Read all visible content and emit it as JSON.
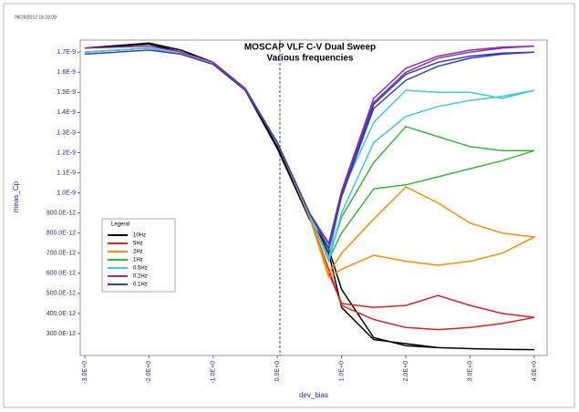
{
  "timestamp": "06/26/2012 16:23:09",
  "chart_data": {
    "type": "line",
    "title": "MOSCAP VLF C-V Dual Sweep",
    "subtitle": "Various frequencies",
    "x_label": "dev_bias",
    "y_label": "meas_Cp",
    "legend_title": "Legend",
    "legend_position": "lower left",
    "xlim": [
      -3.07,
      4.2
    ],
    "ylim": [
      1.91e-10,
      1.76e-09
    ],
    "xticks": [
      {
        "value": -3,
        "label": "-3.0E+0"
      },
      {
        "value": -2,
        "label": "-2.0E+0"
      },
      {
        "value": -1,
        "label": "-1.0E+0"
      },
      {
        "value": 0,
        "label": "0.0E+0"
      },
      {
        "value": 1,
        "label": "1.0E+0"
      },
      {
        "value": 2,
        "label": "2.0E+0"
      },
      {
        "value": 3,
        "label": "3.0E+0"
      },
      {
        "value": 4,
        "label": "4.0E+0"
      }
    ],
    "yticks": [
      {
        "value": 1.7e-09,
        "label": "1.7E-9"
      },
      {
        "value": 1.6e-09,
        "label": "1.6E-9"
      },
      {
        "value": 1.5e-09,
        "label": "1.5E-9"
      },
      {
        "value": 1.4e-09,
        "label": "1.4E-9"
      },
      {
        "value": 1.3e-09,
        "label": "1.3E-9"
      },
      {
        "value": 1.2e-09,
        "label": "1.2E-9"
      },
      {
        "value": 1.1e-09,
        "label": "1.1E-9"
      },
      {
        "value": 1e-09,
        "label": "1.0E-9"
      },
      {
        "value": 9e-10,
        "label": "900.0E-12"
      },
      {
        "value": 8e-10,
        "label": "800.0E-12"
      },
      {
        "value": 7e-10,
        "label": "700.0E-12"
      },
      {
        "value": 6e-10,
        "label": "600.0E-12"
      },
      {
        "value": 5e-10,
        "label": "500.0E-12"
      },
      {
        "value": 4e-10,
        "label": "400.0E-12"
      },
      {
        "value": 3e-10,
        "label": "300.0E-12"
      }
    ],
    "x": [
      -3,
      -2,
      -1.5,
      -1,
      -0.5,
      0,
      0.5,
      0.8,
      1,
      1.5,
      2,
      2.5,
      3,
      3.5,
      4,
      3.5,
      3,
      2.5,
      2,
      1.5,
      1,
      0.8,
      0.5,
      0,
      -0.5,
      -1,
      -1.5,
      -2,
      -3
    ],
    "series": [
      {
        "name": "10Hz",
        "color": "#000000",
        "values": [
          1.72e-09,
          1.745e-09,
          1.71e-09,
          1.65e-09,
          1.51e-09,
          1.23e-09,
          8.7e-10,
          7.2e-10,
          5.2e-10,
          2.8e-10,
          2.4e-10,
          2.3e-10,
          2.25e-10,
          2.22e-10,
          2.2e-10,
          2.22e-10,
          2.25e-10,
          2.3e-10,
          2.5e-10,
          2.7e-10,
          4.3e-10,
          7e-10,
          8.7e-10,
          1.22e-09,
          1.51e-09,
          1.65e-09,
          1.7e-09,
          1.74e-09,
          1.72e-09
        ]
      },
      {
        "name": "5Hz",
        "color": "#e02020",
        "values": [
          1.7e-09,
          1.72e-09,
          1.69e-09,
          1.64e-09,
          1.51e-09,
          1.25e-09,
          8.8e-10,
          6e-10,
          4.5e-10,
          4.3e-10,
          4.4e-10,
          4.9e-10,
          4.4e-10,
          4e-10,
          3.8e-10,
          3.5e-10,
          3.3e-10,
          3.2e-10,
          3.3e-10,
          3.7e-10,
          4.4e-10,
          6.2e-10,
          8.8e-10,
          1.25e-09,
          1.51e-09,
          1.64e-09,
          1.69e-09,
          1.72e-09,
          1.7e-09
        ]
      },
      {
        "name": "2Hz",
        "color": "#ff8c00",
        "values": [
          1.7e-09,
          1.72e-09,
          1.69e-09,
          1.64e-09,
          1.51e-09,
          1.25e-09,
          8.8e-10,
          5.8e-10,
          6.2e-10,
          6.9e-10,
          6.6e-10,
          6.4e-10,
          6.6e-10,
          7e-10,
          7.8e-10,
          8e-10,
          8.5e-10,
          9.5e-10,
          1.03e-09,
          8.7e-10,
          7e-10,
          6e-10,
          8.8e-10,
          1.25e-09,
          1.51e-09,
          1.64e-09,
          1.69e-09,
          1.72e-09,
          1.7e-09
        ]
      },
      {
        "name": "1Hz",
        "color": "#3cb43c",
        "values": [
          1.7e-09,
          1.72e-09,
          1.69e-09,
          1.64e-09,
          1.51e-09,
          1.25e-09,
          8.9e-10,
          6.7e-10,
          8e-10,
          1.02e-09,
          1.04e-09,
          1.08e-09,
          1.12e-09,
          1.16e-09,
          1.21e-09,
          1.21e-09,
          1.23e-09,
          1.28e-09,
          1.33e-09,
          1.15e-09,
          8.8e-10,
          6.8e-10,
          8.9e-10,
          1.25e-09,
          1.51e-09,
          1.64e-09,
          1.69e-09,
          1.72e-09,
          1.7e-09
        ]
      },
      {
        "name": "0.5Hz",
        "color": "#40c8e0",
        "values": [
          1.7e-09,
          1.72e-09,
          1.69e-09,
          1.64e-09,
          1.51e-09,
          1.25e-09,
          8.9e-10,
          6.6e-10,
          9e-10,
          1.25e-09,
          1.38e-09,
          1.43e-09,
          1.46e-09,
          1.48e-09,
          1.51e-09,
          1.47e-09,
          1.5e-09,
          1.5e-09,
          1.51e-09,
          1.35e-09,
          1e-09,
          6.7e-10,
          8.9e-10,
          1.25e-09,
          1.51e-09,
          1.64e-09,
          1.69e-09,
          1.72e-09,
          1.7e-09
        ]
      },
      {
        "name": "0.2Hz",
        "color": "#9030a0",
        "values": [
          1.72e-09,
          1.73e-09,
          1.7e-09,
          1.65e-09,
          1.52e-09,
          1.25e-09,
          9e-10,
          7.45e-10,
          1e-09,
          1.45e-09,
          1.6e-09,
          1.67e-09,
          1.7e-09,
          1.72e-09,
          1.73e-09,
          1.725e-09,
          1.71e-09,
          1.68e-09,
          1.62e-09,
          1.47e-09,
          1.01e-09,
          7.5e-10,
          9e-10,
          1.25e-09,
          1.52e-09,
          1.65e-09,
          1.7e-09,
          1.73e-09,
          1.72e-09
        ]
      },
      {
        "name": "0.1Hz",
        "color": "#3040c0",
        "values": [
          1.69e-09,
          1.71e-09,
          1.69e-09,
          1.64e-09,
          1.51e-09,
          1.25e-09,
          9e-10,
          7.2e-10,
          9.8e-10,
          1.42e-09,
          1.56e-09,
          1.63e-09,
          1.67e-09,
          1.69e-09,
          1.7e-09,
          1.695e-09,
          1.68e-09,
          1.65e-09,
          1.59e-09,
          1.44e-09,
          9.9e-10,
          7.25e-10,
          9e-10,
          1.25e-09,
          1.51e-09,
          1.64e-09,
          1.69e-09,
          1.71e-09,
          1.69e-09
        ]
      }
    ]
  }
}
